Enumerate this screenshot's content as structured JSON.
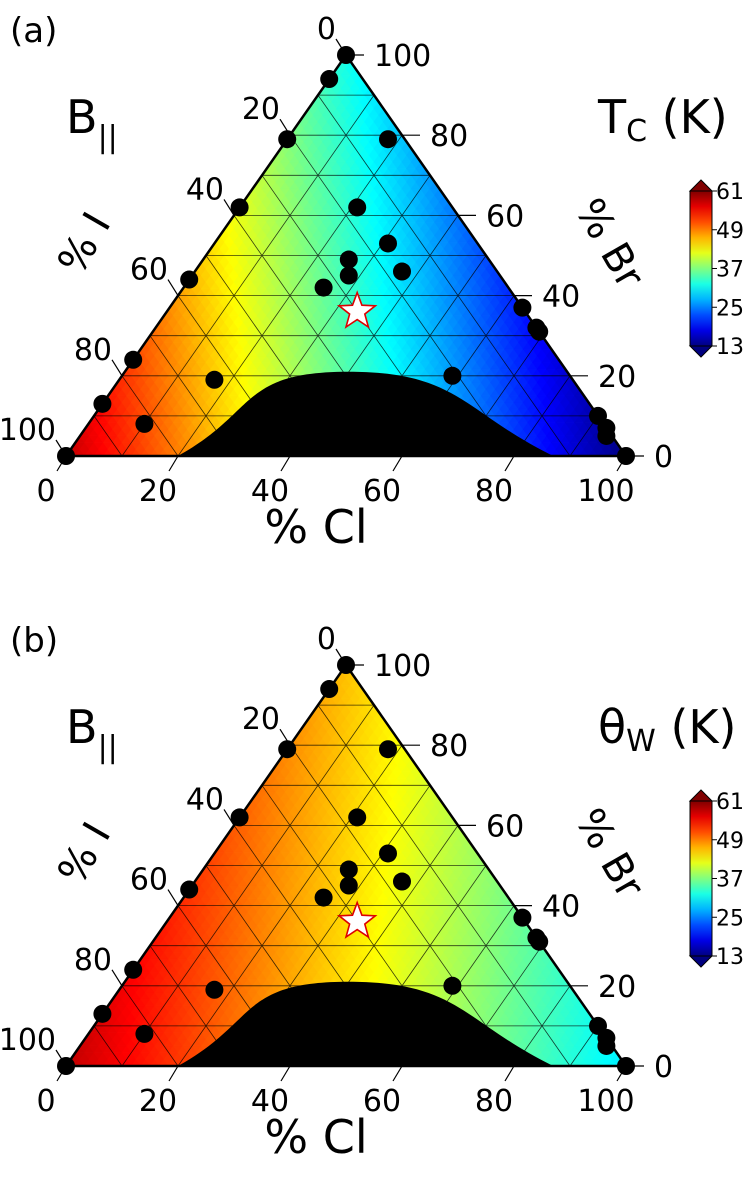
{
  "chart_data": [
    {
      "type": "ternary-heatmap",
      "panel_label": "(a)",
      "field_label": "B",
      "field_subscript": "||",
      "quantity_label": "T",
      "quantity_subscript": "C",
      "unit_label": " (K)",
      "axes": {
        "bottom": {
          "label": "% Cl",
          "ticks": [
            "0",
            "20",
            "40",
            "60",
            "80",
            "100"
          ]
        },
        "right": {
          "label": "% Br",
          "ticks": [
            "0",
            "20",
            "40",
            "60",
            "80",
            "100"
          ]
        },
        "left": {
          "label": "% I",
          "ticks": [
            "100",
            "80",
            "60",
            "40",
            "20",
            "0"
          ]
        }
      },
      "colorbar": {
        "ticks": [
          "61",
          "49",
          "37",
          "25",
          "13"
        ],
        "range": [
          13,
          61
        ]
      },
      "points": [
        {
          "cl": 0,
          "br": 100
        },
        {
          "cl": 0,
          "br": 94
        },
        {
          "cl": 0,
          "br": 79
        },
        {
          "cl": 0,
          "br": 62
        },
        {
          "cl": 0,
          "br": 44
        },
        {
          "cl": 0,
          "br": 24
        },
        {
          "cl": 0,
          "br": 13
        },
        {
          "cl": 0,
          "br": 0
        },
        {
          "cl": 10,
          "br": 8
        },
        {
          "cl": 17,
          "br": 19
        },
        {
          "cl": 25,
          "br": 42
        },
        {
          "cl": 26,
          "br": 49
        },
        {
          "cl": 18,
          "br": 79
        },
        {
          "cl": 21,
          "br": 62
        },
        {
          "cl": 31,
          "br": 53
        },
        {
          "cl": 28,
          "br": 45
        },
        {
          "cl": 37,
          "br": 46
        },
        {
          "cl": 63,
          "br": 37
        },
        {
          "cl": 68,
          "br": 32
        },
        {
          "cl": 69,
          "br": 31
        },
        {
          "cl": 59,
          "br": 20
        },
        {
          "cl": 90,
          "br": 10
        },
        {
          "cl": 93,
          "br": 7
        },
        {
          "cl": 94,
          "br": 5
        },
        {
          "cl": 100,
          "br": 0
        }
      ],
      "star": {
        "cl": 34,
        "br": 36
      },
      "values_by_corner": {
        "I_rich": 58,
        "Cl_rich": 13,
        "Br_rich": 32
      }
    },
    {
      "type": "ternary-heatmap",
      "panel_label": "(b)",
      "field_label": "B",
      "field_subscript": "||",
      "quantity_label": "θ",
      "quantity_subscript": "W",
      "unit_label": " (K)",
      "axes": {
        "bottom": {
          "label": "% Cl",
          "ticks": [
            "0",
            "20",
            "40",
            "60",
            "80",
            "100"
          ]
        },
        "right": {
          "label": "% Br",
          "ticks": [
            "0",
            "20",
            "40",
            "60",
            "80",
            "100"
          ]
        },
        "left": {
          "label": "% I",
          "ticks": [
            "100",
            "80",
            "60",
            "40",
            "20",
            "0"
          ]
        }
      },
      "colorbar": {
        "ticks": [
          "61",
          "49",
          "37",
          "25",
          "13"
        ],
        "range": [
          13,
          61
        ]
      },
      "points": [
        {
          "cl": 0,
          "br": 100
        },
        {
          "cl": 0,
          "br": 94
        },
        {
          "cl": 0,
          "br": 79
        },
        {
          "cl": 0,
          "br": 62
        },
        {
          "cl": 0,
          "br": 44
        },
        {
          "cl": 0,
          "br": 24
        },
        {
          "cl": 0,
          "br": 13
        },
        {
          "cl": 0,
          "br": 0
        },
        {
          "cl": 10,
          "br": 8
        },
        {
          "cl": 17,
          "br": 19
        },
        {
          "cl": 25,
          "br": 42
        },
        {
          "cl": 26,
          "br": 49
        },
        {
          "cl": 18,
          "br": 79
        },
        {
          "cl": 21,
          "br": 62
        },
        {
          "cl": 31,
          "br": 53
        },
        {
          "cl": 28,
          "br": 45
        },
        {
          "cl": 37,
          "br": 46
        },
        {
          "cl": 63,
          "br": 37
        },
        {
          "cl": 68,
          "br": 32
        },
        {
          "cl": 69,
          "br": 31
        },
        {
          "cl": 59,
          "br": 20
        },
        {
          "cl": 90,
          "br": 10
        },
        {
          "cl": 93,
          "br": 7
        },
        {
          "cl": 94,
          "br": 5
        },
        {
          "cl": 100,
          "br": 0
        }
      ],
      "star": {
        "cl": 34,
        "br": 36
      },
      "values_by_corner": {
        "I_rich": 58,
        "Cl_rich": 30,
        "Br_rich": 46
      }
    }
  ]
}
